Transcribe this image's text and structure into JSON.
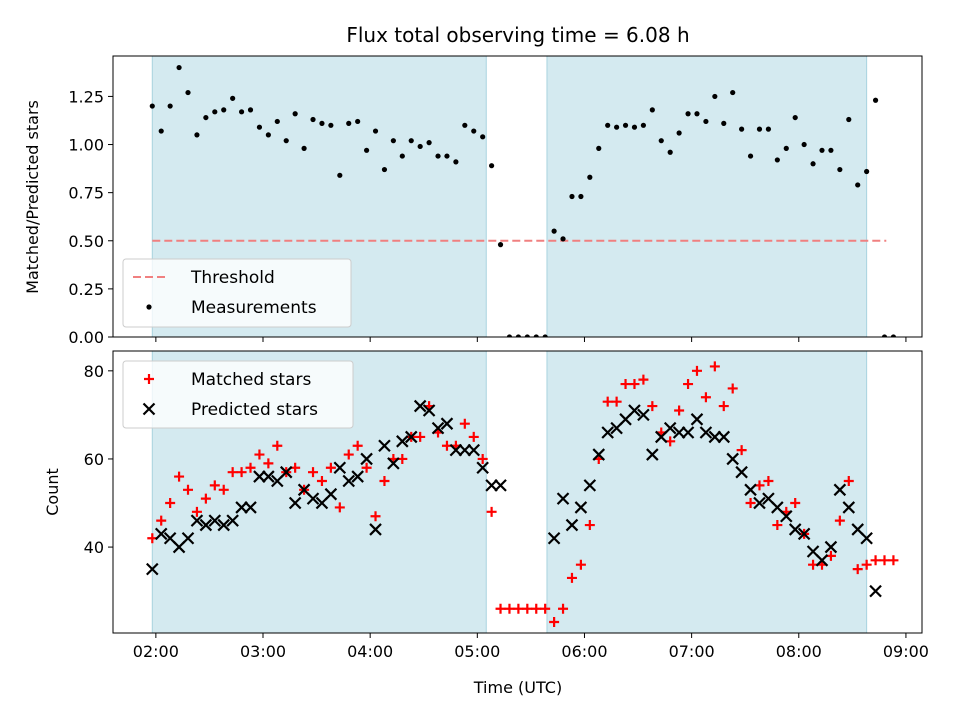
{
  "chart_data": [
    {
      "type": "scatter",
      "title": "Flux total observing time = 6.08 h",
      "ylabel": "Matched/Predicted stars",
      "xlabel": "",
      "x_unit": "hours UTC",
      "xlim": [
        "01:36",
        "09:09"
      ],
      "ylim": [
        0,
        1.46
      ],
      "xticks": [
        "02:00",
        "03:00",
        "04:00",
        "05:00",
        "06:00",
        "07:00",
        "08:00",
        "09:00"
      ],
      "yticks": [
        "0.00",
        "0.25",
        "0.50",
        "0.75",
        "1.00",
        "1.25"
      ],
      "shaded_intervals": [
        [
          "01:58",
          "05:05"
        ],
        [
          "05:39",
          "08:38"
        ]
      ],
      "shade_color": "#d4eaf0",
      "legend_position": "lower-left",
      "series": [
        {
          "name": "Threshold",
          "kind": "dashed-line",
          "color": "#f08080",
          "y": 0.5,
          "x_range": [
            "01:58",
            "08:49"
          ]
        },
        {
          "name": "Measurements",
          "kind": "dots",
          "color": "#000000",
          "points": [
            [
              "01:58",
              1.2
            ],
            [
              "02:03",
              1.07
            ],
            [
              "02:08",
              1.2
            ],
            [
              "02:13",
              1.4
            ],
            [
              "02:18",
              1.27
            ],
            [
              "02:23",
              1.05
            ],
            [
              "02:28",
              1.14
            ],
            [
              "02:33",
              1.17
            ],
            [
              "02:38",
              1.18
            ],
            [
              "02:43",
              1.24
            ],
            [
              "02:48",
              1.17
            ],
            [
              "02:53",
              1.18
            ],
            [
              "02:58",
              1.09
            ],
            [
              "03:03",
              1.05
            ],
            [
              "03:08",
              1.12
            ],
            [
              "03:13",
              1.02
            ],
            [
              "03:18",
              1.16
            ],
            [
              "03:23",
              0.98
            ],
            [
              "03:28",
              1.13
            ],
            [
              "03:33",
              1.11
            ],
            [
              "03:38",
              1.1
            ],
            [
              "03:43",
              0.84
            ],
            [
              "03:48",
              1.11
            ],
            [
              "03:53",
              1.12
            ],
            [
              "03:58",
              0.97
            ],
            [
              "04:03",
              1.07
            ],
            [
              "04:08",
              0.87
            ],
            [
              "04:13",
              1.02
            ],
            [
              "04:18",
              0.94
            ],
            [
              "04:23",
              1.02
            ],
            [
              "04:28",
              0.99
            ],
            [
              "04:33",
              1.01
            ],
            [
              "04:38",
              0.94
            ],
            [
              "04:43",
              0.94
            ],
            [
              "04:48",
              0.91
            ],
            [
              "04:53",
              1.1
            ],
            [
              "04:58",
              1.07
            ],
            [
              "05:03",
              1.04
            ],
            [
              "05:08",
              0.89
            ],
            [
              "05:13",
              0.48
            ],
            [
              "05:18",
              0.0
            ],
            [
              "05:23",
              0.0
            ],
            [
              "05:28",
              0.0
            ],
            [
              "05:33",
              0.0
            ],
            [
              "05:38",
              0.0
            ],
            [
              "05:43",
              0.55
            ],
            [
              "05:48",
              0.51
            ],
            [
              "05:53",
              0.73
            ],
            [
              "05:58",
              0.73
            ],
            [
              "06:03",
              0.83
            ],
            [
              "06:08",
              0.98
            ],
            [
              "06:13",
              1.1
            ],
            [
              "06:18",
              1.09
            ],
            [
              "06:23",
              1.1
            ],
            [
              "06:28",
              1.09
            ],
            [
              "06:33",
              1.1
            ],
            [
              "06:38",
              1.18
            ],
            [
              "06:43",
              1.02
            ],
            [
              "06:48",
              0.96
            ],
            [
              "06:53",
              1.06
            ],
            [
              "06:58",
              1.16
            ],
            [
              "07:03",
              1.16
            ],
            [
              "07:08",
              1.12
            ],
            [
              "07:13",
              1.25
            ],
            [
              "07:18",
              1.11
            ],
            [
              "07:23",
              1.27
            ],
            [
              "07:28",
              1.08
            ],
            [
              "07:33",
              0.94
            ],
            [
              "07:38",
              1.08
            ],
            [
              "07:43",
              1.08
            ],
            [
              "07:48",
              0.92
            ],
            [
              "07:53",
              0.98
            ],
            [
              "07:58",
              1.14
            ],
            [
              "08:03",
              1.0
            ],
            [
              "08:08",
              0.9
            ],
            [
              "08:13",
              0.97
            ],
            [
              "08:18",
              0.97
            ],
            [
              "08:23",
              0.87
            ],
            [
              "08:28",
              1.13
            ],
            [
              "08:33",
              0.79
            ],
            [
              "08:38",
              0.86
            ],
            [
              "08:43",
              1.23
            ],
            [
              "08:48",
              0.0
            ],
            [
              "08:53",
              0.0
            ]
          ]
        }
      ]
    },
    {
      "type": "scatter",
      "title": "",
      "xlabel": "Time (UTC)",
      "ylabel": "Count",
      "x_unit": "hours UTC",
      "xlim": [
        "01:36",
        "09:09"
      ],
      "ylim": [
        20.5,
        84.5
      ],
      "xticks": [
        "02:00",
        "03:00",
        "04:00",
        "05:00",
        "06:00",
        "07:00",
        "08:00",
        "09:00"
      ],
      "yticks": [
        "40",
        "60",
        "80"
      ],
      "shaded_intervals": [
        [
          "01:58",
          "05:05"
        ],
        [
          "05:39",
          "08:38"
        ]
      ],
      "shade_color": "#d4eaf0",
      "legend_position": "upper-left",
      "series": [
        {
          "name": "Matched stars",
          "kind": "plus",
          "color": "#ff0000",
          "points": [
            [
              "01:58",
              42
            ],
            [
              "02:03",
              46
            ],
            [
              "02:08",
              50
            ],
            [
              "02:13",
              56
            ],
            [
              "02:18",
              53
            ],
            [
              "02:23",
              48
            ],
            [
              "02:28",
              51
            ],
            [
              "02:33",
              54
            ],
            [
              "02:38",
              53
            ],
            [
              "02:43",
              57
            ],
            [
              "02:48",
              57
            ],
            [
              "02:53",
              58
            ],
            [
              "02:58",
              61
            ],
            [
              "03:03",
              59
            ],
            [
              "03:08",
              63
            ],
            [
              "03:13",
              57
            ],
            [
              "03:18",
              58
            ],
            [
              "03:23",
              53
            ],
            [
              "03:28",
              57
            ],
            [
              "03:33",
              55
            ],
            [
              "03:38",
              58
            ],
            [
              "03:43",
              49
            ],
            [
              "03:48",
              61
            ],
            [
              "03:53",
              63
            ],
            [
              "03:58",
              58
            ],
            [
              "04:03",
              47
            ],
            [
              "04:08",
              55
            ],
            [
              "04:13",
              60
            ],
            [
              "04:18",
              60
            ],
            [
              "04:23",
              65
            ],
            [
              "04:28",
              65
            ],
            [
              "04:33",
              72
            ],
            [
              "04:38",
              66
            ],
            [
              "04:43",
              63
            ],
            [
              "04:48",
              63
            ],
            [
              "04:53",
              68
            ],
            [
              "04:58",
              65
            ],
            [
              "05:03",
              60
            ],
            [
              "05:08",
              48
            ],
            [
              "05:13",
              26
            ],
            [
              "05:18",
              26
            ],
            [
              "05:23",
              26
            ],
            [
              "05:28",
              26
            ],
            [
              "05:33",
              26
            ],
            [
              "05:38",
              26
            ],
            [
              "05:43",
              23
            ],
            [
              "05:48",
              26
            ],
            [
              "05:53",
              33
            ],
            [
              "05:58",
              36
            ],
            [
              "06:03",
              45
            ],
            [
              "06:08",
              60
            ],
            [
              "06:13",
              73
            ],
            [
              "06:18",
              73
            ],
            [
              "06:23",
              77
            ],
            [
              "06:28",
              77
            ],
            [
              "06:33",
              78
            ],
            [
              "06:38",
              72
            ],
            [
              "06:43",
              66
            ],
            [
              "06:48",
              64
            ],
            [
              "06:53",
              71
            ],
            [
              "06:58",
              77
            ],
            [
              "07:03",
              80
            ],
            [
              "07:08",
              74
            ],
            [
              "07:13",
              81
            ],
            [
              "07:18",
              72
            ],
            [
              "07:23",
              76
            ],
            [
              "07:28",
              62
            ],
            [
              "07:33",
              50
            ],
            [
              "07:38",
              54
            ],
            [
              "07:43",
              55
            ],
            [
              "07:48",
              45
            ],
            [
              "07:53",
              48
            ],
            [
              "07:58",
              50
            ],
            [
              "08:03",
              43
            ],
            [
              "08:08",
              36
            ],
            [
              "08:13",
              36
            ],
            [
              "08:18",
              38
            ],
            [
              "08:23",
              46
            ],
            [
              "08:28",
              55
            ],
            [
              "08:33",
              35
            ],
            [
              "08:38",
              36
            ],
            [
              "08:43",
              37
            ],
            [
              "08:48",
              37
            ],
            [
              "08:53",
              37
            ]
          ]
        },
        {
          "name": "Predicted stars",
          "kind": "cross",
          "color": "#000000",
          "points": [
            [
              "01:58",
              35
            ],
            [
              "02:03",
              43
            ],
            [
              "02:08",
              42
            ],
            [
              "02:13",
              40
            ],
            [
              "02:18",
              42
            ],
            [
              "02:23",
              46
            ],
            [
              "02:28",
              45
            ],
            [
              "02:33",
              46
            ],
            [
              "02:38",
              45
            ],
            [
              "02:43",
              46
            ],
            [
              "02:48",
              49
            ],
            [
              "02:53",
              49
            ],
            [
              "02:58",
              56
            ],
            [
              "03:03",
              56
            ],
            [
              "03:08",
              55
            ],
            [
              "03:13",
              57
            ],
            [
              "03:18",
              50
            ],
            [
              "03:23",
              53
            ],
            [
              "03:28",
              51
            ],
            [
              "03:33",
              50
            ],
            [
              "03:38",
              52
            ],
            [
              "03:43",
              58
            ],
            [
              "03:48",
              55
            ],
            [
              "03:53",
              56
            ],
            [
              "03:58",
              60
            ],
            [
              "04:03",
              44
            ],
            [
              "04:08",
              63
            ],
            [
              "04:13",
              59
            ],
            [
              "04:18",
              64
            ],
            [
              "04:23",
              65
            ],
            [
              "04:28",
              72
            ],
            [
              "04:33",
              71
            ],
            [
              "04:38",
              67
            ],
            [
              "04:43",
              68
            ],
            [
              "04:48",
              62
            ],
            [
              "04:53",
              62
            ],
            [
              "04:58",
              62
            ],
            [
              "05:03",
              58
            ],
            [
              "05:08",
              54
            ],
            [
              "05:13",
              54
            ],
            [
              "05:43",
              42
            ],
            [
              "05:48",
              51
            ],
            [
              "05:53",
              45
            ],
            [
              "05:58",
              49
            ],
            [
              "06:03",
              54
            ],
            [
              "06:08",
              61
            ],
            [
              "06:13",
              66
            ],
            [
              "06:18",
              67
            ],
            [
              "06:23",
              69
            ],
            [
              "06:28",
              71
            ],
            [
              "06:33",
              70
            ],
            [
              "06:38",
              61
            ],
            [
              "06:43",
              65
            ],
            [
              "06:48",
              67
            ],
            [
              "06:53",
              66
            ],
            [
              "06:58",
              66
            ],
            [
              "07:03",
              69
            ],
            [
              "07:08",
              66
            ],
            [
              "07:13",
              65
            ],
            [
              "07:18",
              65
            ],
            [
              "07:23",
              60
            ],
            [
              "07:28",
              57
            ],
            [
              "07:33",
              53
            ],
            [
              "07:38",
              50
            ],
            [
              "07:43",
              51
            ],
            [
              "07:48",
              49
            ],
            [
              "07:53",
              47
            ],
            [
              "07:58",
              44
            ],
            [
              "08:03",
              43
            ],
            [
              "08:08",
              39
            ],
            [
              "08:13",
              37
            ],
            [
              "08:18",
              40
            ],
            [
              "08:23",
              53
            ],
            [
              "08:28",
              49
            ],
            [
              "08:33",
              44
            ],
            [
              "08:38",
              42
            ],
            [
              "08:43",
              30
            ]
          ]
        }
      ]
    }
  ]
}
